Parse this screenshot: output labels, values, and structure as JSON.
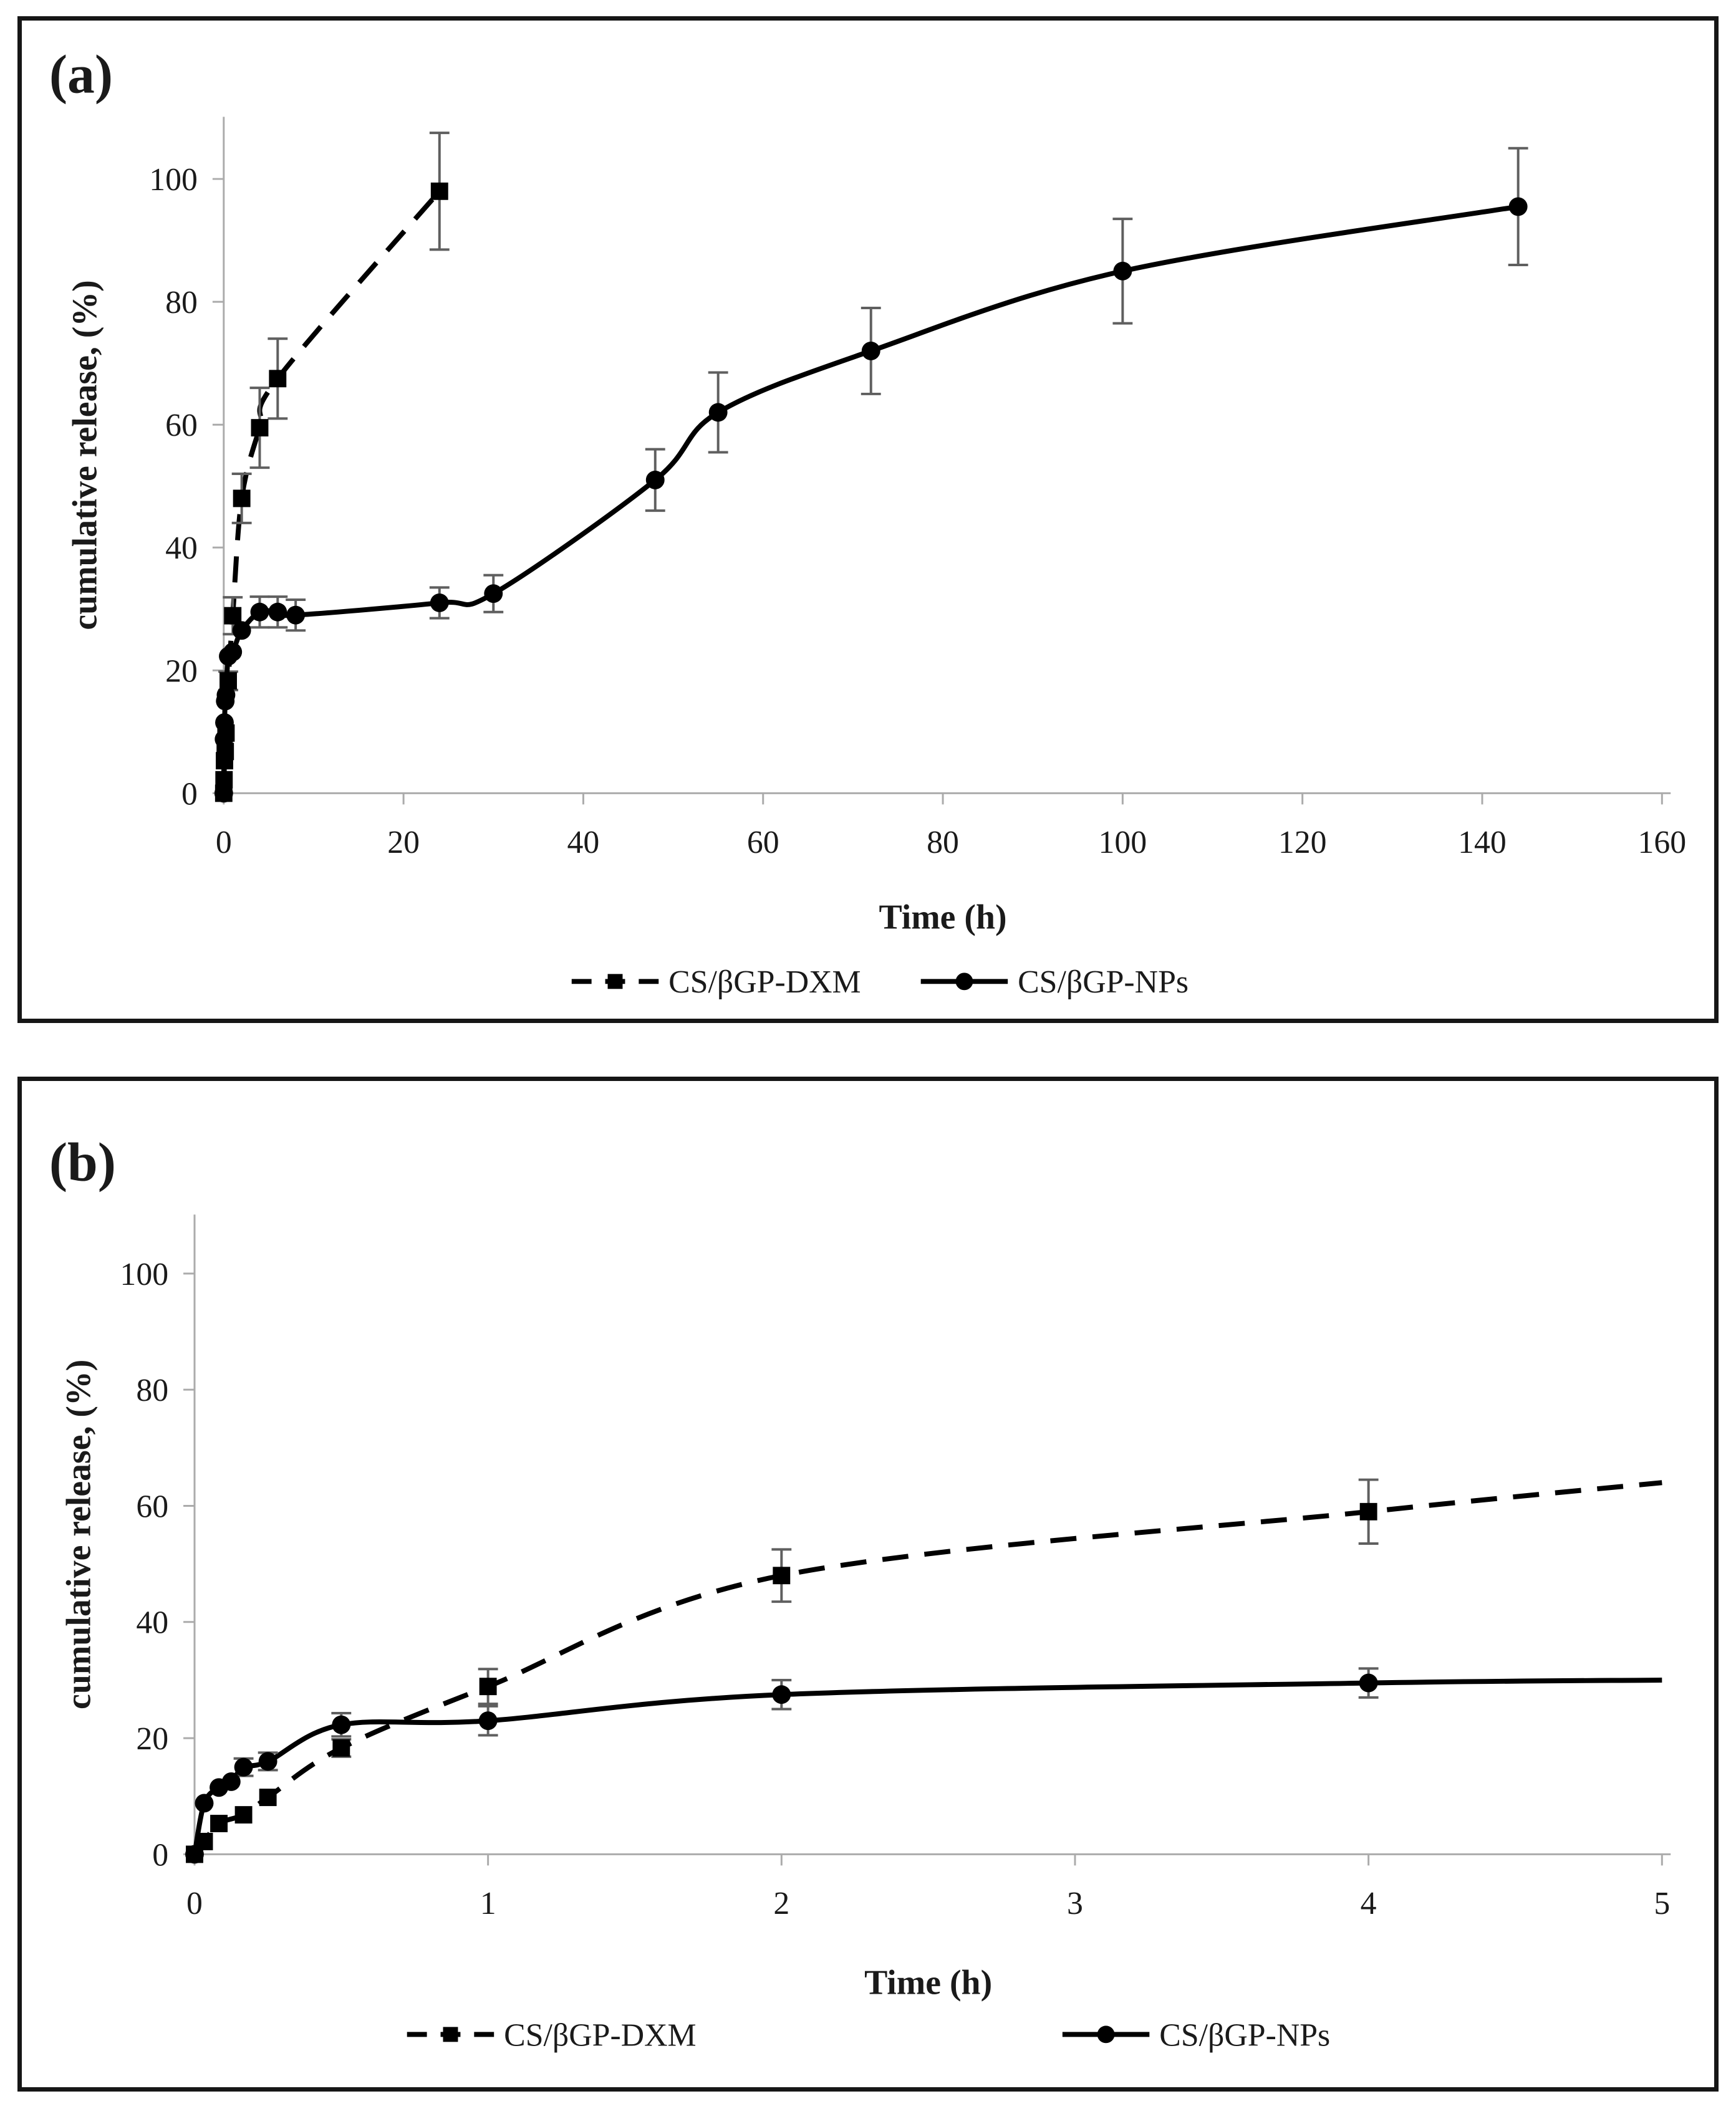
{
  "figure": {
    "background": "#ffffff",
    "frame_color": "#161616",
    "axis_color": "#ababab",
    "text_color": "#1a1a1a",
    "series_color": "#000000",
    "error_bar_color": "#5f5f5f"
  },
  "panels": [
    {
      "panel_label": "(a)",
      "x_title": "Time (h)",
      "y_title": "cumulative release, (%)",
      "legend": [
        {
          "label": "CS/βGP-DXM",
          "marker": "square",
          "line": "dashed"
        },
        {
          "label": "CS/βGP-NPs",
          "marker": "circle",
          "line": "solid"
        }
      ]
    },
    {
      "panel_label": "(b)",
      "x_title": "Time (h)",
      "y_title": "cumulative release, (%)",
      "legend": [
        {
          "label": "CS/βGP-DXM",
          "marker": "square",
          "line": "dashed"
        },
        {
          "label": "CS/βGP-NPs",
          "marker": "circle",
          "line": "solid"
        }
      ]
    }
  ],
  "chart_data": [
    {
      "type": "line",
      "panel": "a",
      "title": "",
      "xlabel": "Time (h)",
      "ylabel": "cumulative release, (%)",
      "xlim": [
        0,
        160
      ],
      "ylim": [
        0,
        100
      ],
      "x_ticks": [
        0,
        20,
        40,
        60,
        80,
        100,
        120,
        140,
        160
      ],
      "y_ticks": [
        0,
        20,
        40,
        60,
        80,
        100
      ],
      "grid": false,
      "legend_position": "bottom-center",
      "series": [
        {
          "name": "CS/βGP-DXM",
          "line": "dashed",
          "marker": "square",
          "points": [
            [
              0,
              0,
              null
            ],
            [
              0.033,
              2.2,
              null
            ],
            [
              0.083,
              5.3,
              null
            ],
            [
              0.167,
              6.8,
              null
            ],
            [
              0.25,
              9.8,
              null
            ],
            [
              0.5,
              18.3,
              1.5
            ],
            [
              1,
              28.9,
              3
            ],
            [
              2,
              48,
              4
            ],
            [
              4,
              59.5,
              6.5
            ],
            [
              6,
              67.5,
              6.5
            ],
            [
              24,
              98,
              9.5
            ]
          ]
        },
        {
          "name": "CS/βGP-NPs",
          "line": "solid",
          "marker": "circle",
          "points": [
            [
              0,
              0,
              null
            ],
            [
              0.033,
              8.8,
              null
            ],
            [
              0.083,
              11.5,
              null
            ],
            [
              0.167,
              15,
              null
            ],
            [
              0.25,
              16,
              null
            ],
            [
              0.5,
              22.3,
              null
            ],
            [
              1,
              23,
              null
            ],
            [
              2,
              26.5,
              null
            ],
            [
              4,
              29.5,
              2.5
            ],
            [
              6,
              29.5,
              2.5
            ],
            [
              8,
              29,
              2.5
            ],
            [
              24,
              31,
              2.5
            ],
            [
              30,
              32.5,
              3
            ],
            [
              48,
              51,
              5
            ],
            [
              55,
              62,
              6.5
            ],
            [
              72,
              72,
              7
            ],
            [
              100,
              85,
              8.5
            ],
            [
              144,
              95.5,
              9.5
            ]
          ]
        }
      ]
    },
    {
      "type": "line",
      "panel": "b",
      "title": "",
      "xlabel": "Time (h)",
      "ylabel": "cumulative release, (%)",
      "xlim": [
        0,
        5
      ],
      "ylim": [
        0,
        100
      ],
      "x_ticks": [
        0,
        1,
        2,
        3,
        4,
        5
      ],
      "y_ticks": [
        0,
        20,
        40,
        60,
        80,
        100
      ],
      "grid": false,
      "legend_position": "bottom-spread",
      "series": [
        {
          "name": "CS/βGP-DXM",
          "line": "dashed",
          "marker": "square",
          "points": [
            [
              0,
              0,
              null
            ],
            [
              0.033,
              2.2,
              null
            ],
            [
              0.083,
              5.3,
              null
            ],
            [
              0.167,
              6.8,
              null
            ],
            [
              0.25,
              9.8,
              null
            ],
            [
              0.5,
              18.3,
              1.5
            ],
            [
              1,
              28.9,
              3
            ],
            [
              2,
              48,
              4.5
            ],
            [
              4,
              59,
              5.5
            ],
            [
              5,
              64,
              null,
              false
            ]
          ]
        },
        {
          "name": "CS/βGP-NPs",
          "line": "solid",
          "marker": "circle",
          "points": [
            [
              0,
              0,
              null
            ],
            [
              0.033,
              8.8,
              null
            ],
            [
              0.083,
              11.5,
              null
            ],
            [
              0.125,
              12.5,
              null
            ],
            [
              0.167,
              15,
              1.5
            ],
            [
              0.25,
              16,
              1.5
            ],
            [
              0.5,
              22.3,
              2
            ],
            [
              1,
              23,
              2.5
            ],
            [
              2,
              27.5,
              2.5
            ],
            [
              4,
              29.5,
              2.5
            ],
            [
              5,
              30,
              null,
              false
            ]
          ]
        }
      ]
    }
  ]
}
